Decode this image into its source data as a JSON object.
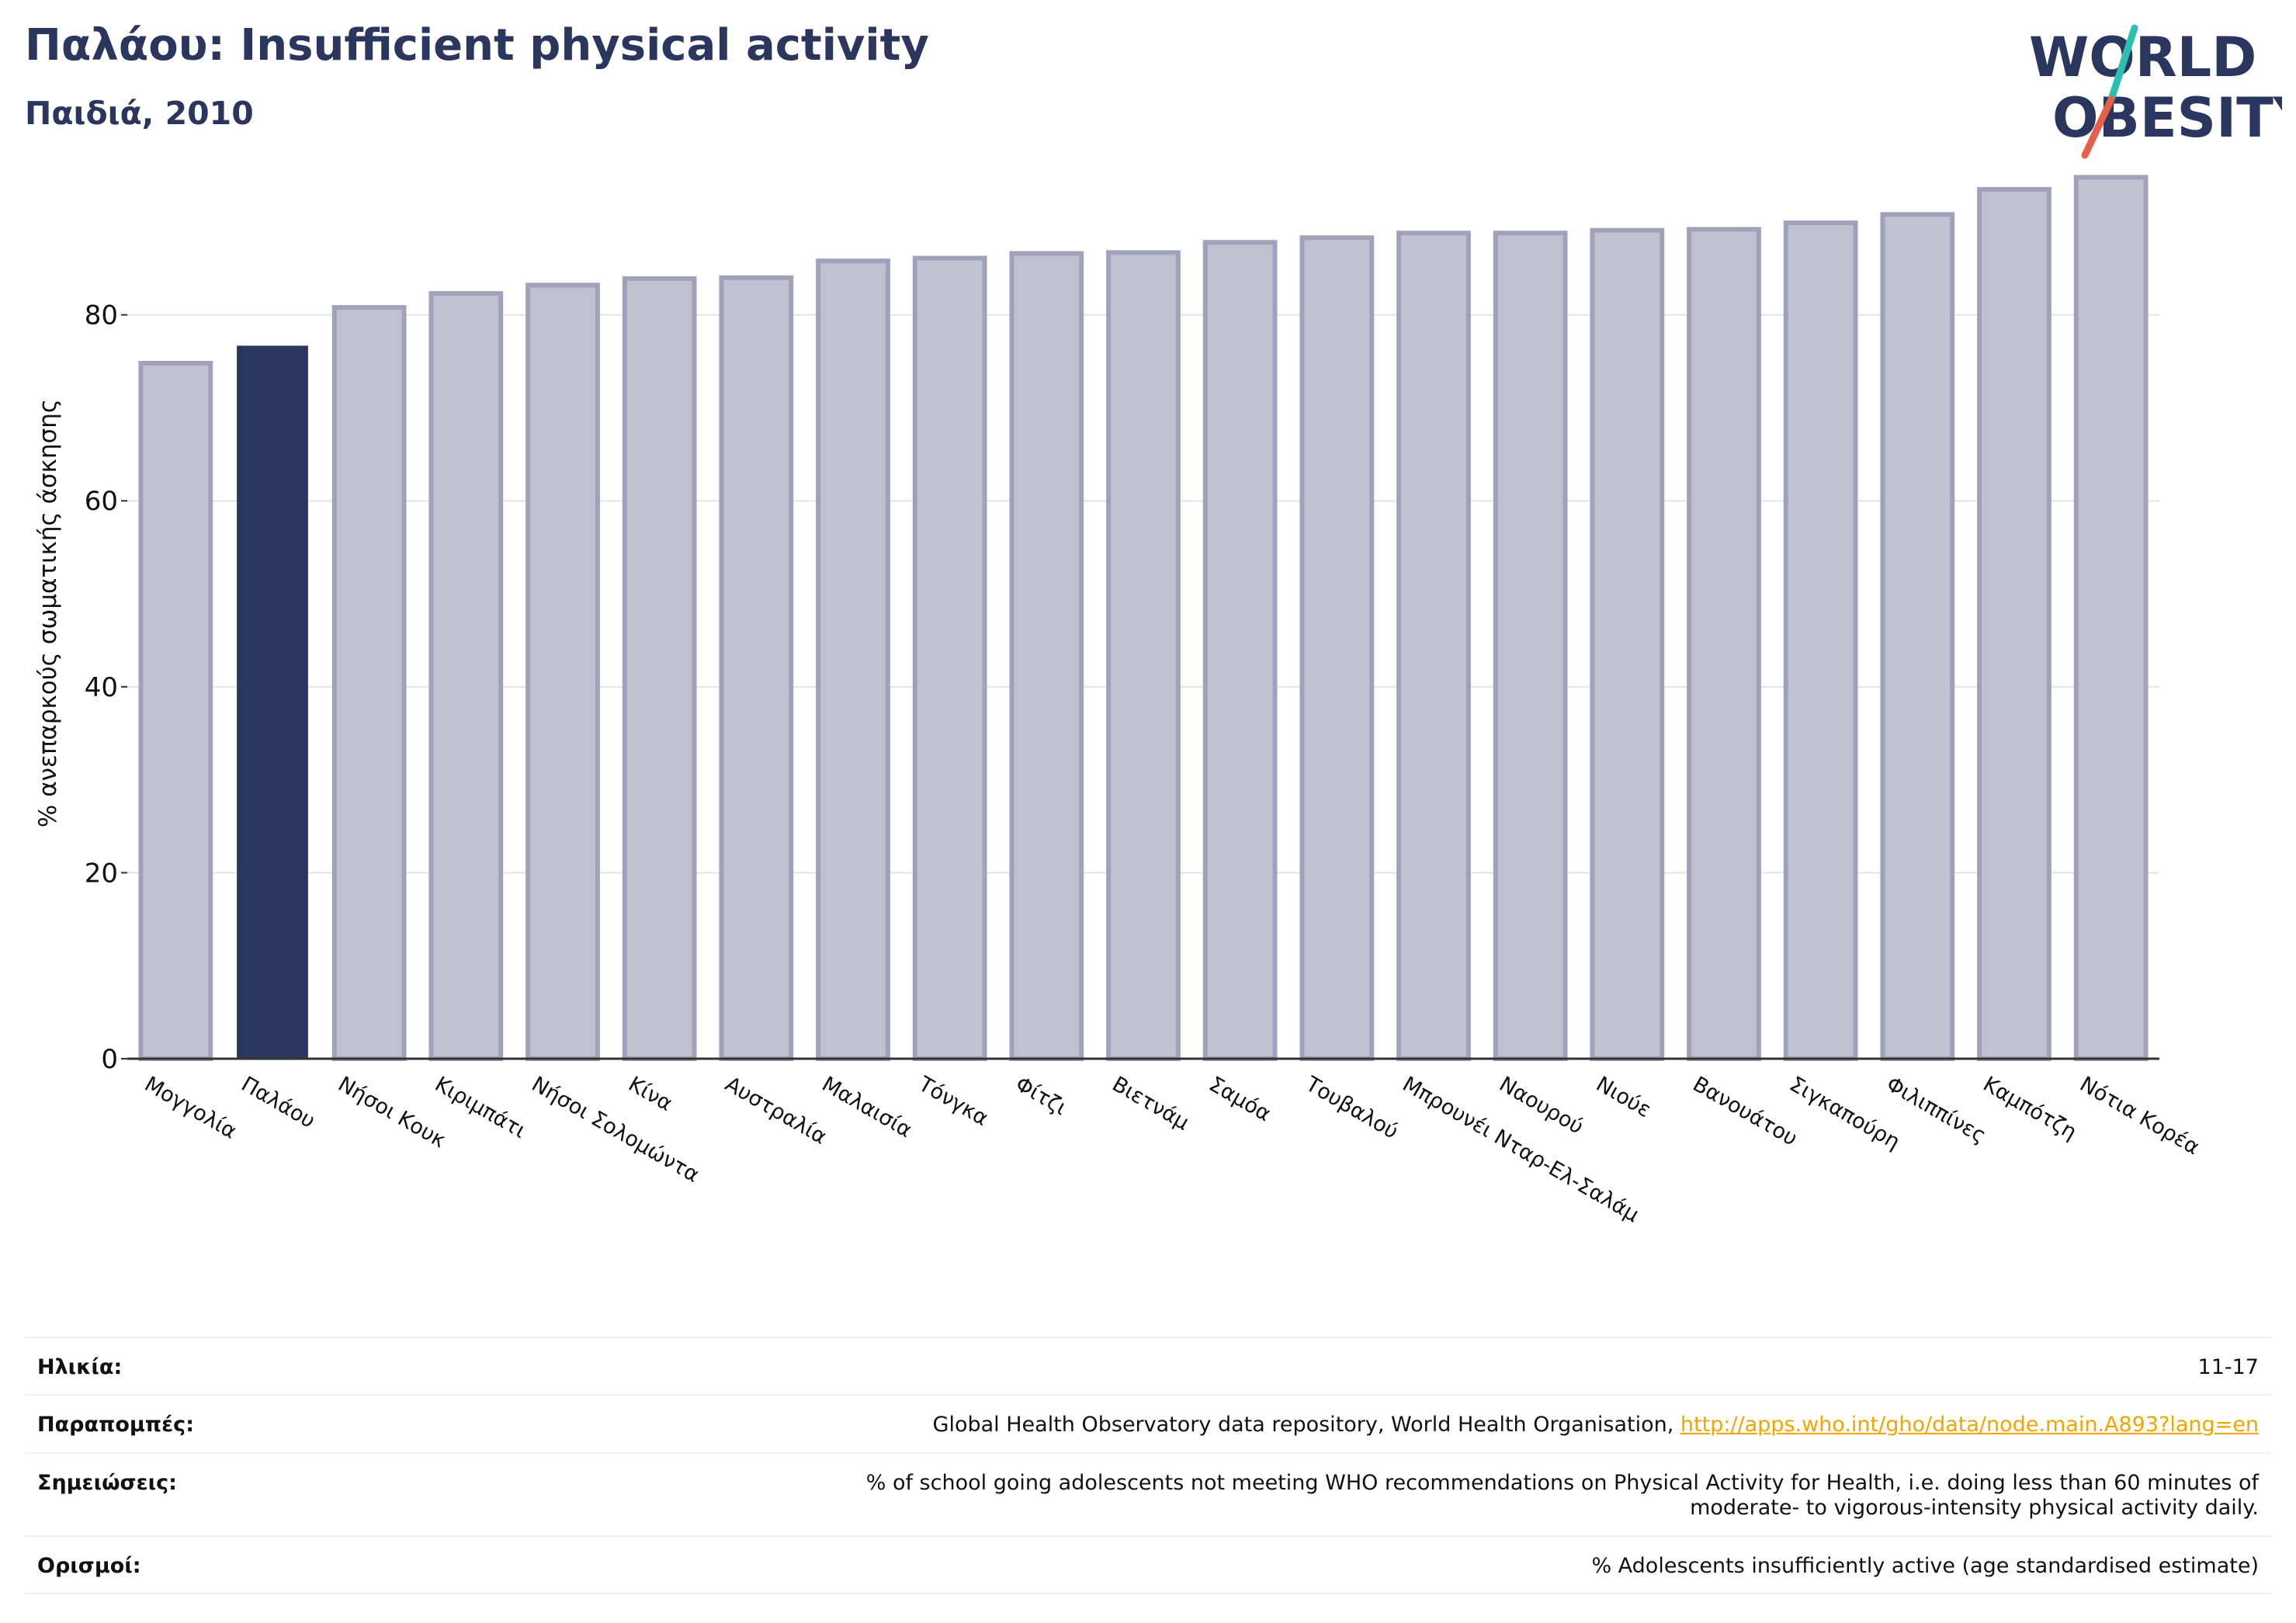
{
  "header": {
    "title": "Παλάου: Insufficient physical activity",
    "subtitle": "Παιδιά, 2010",
    "logo_text": [
      "WORLD",
      "OBESITY"
    ]
  },
  "colors": {
    "highlight": "#2b365e",
    "bar": "#bec1ce",
    "bar_edge": "#9ea3bb",
    "logo_teal": "#2fbfb1",
    "logo_coral": "#e4604a",
    "link": "#f0a500"
  },
  "chart_data": {
    "type": "bar",
    "title": "Παλάου: Insufficient physical activity",
    "subtitle": "Παιδιά, 2010",
    "xlabel": "",
    "ylabel": "% ανεπαρκούς σωματικής άσκησης",
    "ylim": [
      0,
      97
    ],
    "yticks": [
      0,
      20,
      40,
      60,
      80
    ],
    "grid": true,
    "highlight_category": "Παλάου",
    "categories": [
      "Μογγολία",
      "Παλάου",
      "Νήσοι Κουκ",
      "Κιριμπάτι",
      "Νήσοι Σολομώντα",
      "Κίνα",
      "Αυστραλία",
      "Μαλαισία",
      "Τόνγκα",
      "Φίτζι",
      "Βιετνάμ",
      "Σαμόα",
      "Τουβαλού",
      "Μπρουνέι Νταρ-Ελ-Σαλάμ",
      "Ναουρού",
      "Νιούε",
      "Βανουάτου",
      "Σιγκαπούρη",
      "Φιλιππίνες",
      "Καμπότζη",
      "Νότια Κορέα"
    ],
    "values": [
      74.8,
      76.6,
      80.8,
      82.3,
      83.2,
      83.9,
      84.0,
      85.8,
      86.1,
      86.6,
      86.7,
      87.8,
      88.3,
      88.8,
      88.8,
      89.1,
      89.2,
      89.9,
      90.8,
      93.5,
      94.8
    ]
  },
  "footer": {
    "rows": [
      {
        "key": "Ηλικία:",
        "value": "11-17"
      },
      {
        "key": "Παραπομπές:",
        "value": "Global Health Observatory data repository, World Health Organisation, ",
        "link": "http://apps.who.int/gho/data/node.main.A893?lang=en"
      },
      {
        "key": "Σημειώσεις:",
        "value": "% of school going adolescents not meeting WHO recommendations on Physical Activity for Health, i.e. doing less than 60 minutes of",
        "value2": "moderate- to vigorous-intensity physical activity daily."
      },
      {
        "key": "Ορισμοί:",
        "value": "% Adolescents insufficiently active (age standardised estimate)"
      }
    ]
  }
}
